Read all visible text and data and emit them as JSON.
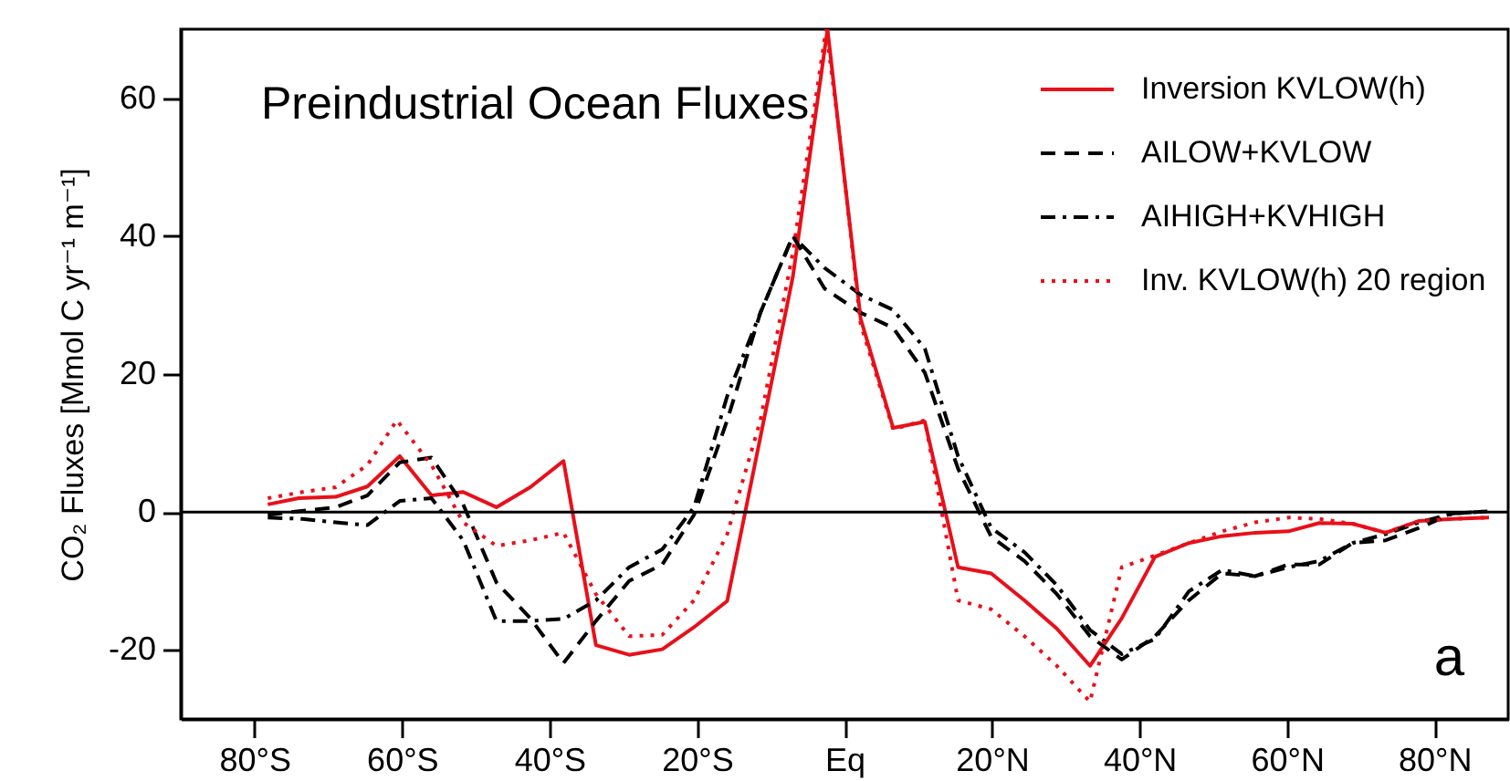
{
  "chart_data": {
    "type": "line",
    "title": "Preindustrial Ocean Fluxes",
    "ylabel": "CO₂ Fluxes [Mmol C yr⁻¹ m⁻¹]",
    "annotations": [
      "a"
    ],
    "xlim": [
      -90,
      90
    ],
    "xticks": [
      {
        "value": -80,
        "label": "80°S"
      },
      {
        "value": -60,
        "label": "60°S"
      },
      {
        "value": -40,
        "label": "40°S"
      },
      {
        "value": -20,
        "label": "20°S"
      },
      {
        "value": 0,
        "label": "Eq"
      },
      {
        "value": 20,
        "label": "20°N"
      },
      {
        "value": 40,
        "label": "40°N"
      },
      {
        "value": 60,
        "label": "60°N"
      },
      {
        "value": 80,
        "label": "80°N"
      }
    ],
    "ylim": [
      -30,
      70
    ],
    "yticks": [
      -20,
      0,
      20,
      40,
      60
    ],
    "legend": "top right",
    "ref_lines": [
      {
        "axis": "y",
        "value": 0,
        "color": "#000000"
      }
    ],
    "series": [
      {
        "name": "Inversion KVLOW(h)",
        "color": "#e8101a",
        "line_style": "solid",
        "x": [
          -78.2,
          -74,
          -69,
          -64.7,
          -60.3,
          -56,
          -51.7,
          -47.2,
          -42.6,
          -38.1,
          -33.7,
          -29.2,
          -24.7,
          -20.4,
          -15.9,
          -7,
          -2.3,
          -0.7,
          2.2,
          6.6,
          10.9,
          15.4,
          19.9,
          24.4,
          28.8,
          33.3,
          37.6,
          42.1,
          46.7,
          51.2,
          55.7,
          60.2,
          64.4,
          68.9,
          73.4,
          77.9,
          82.5,
          87.4
        ],
        "values": [
          1.1,
          2.0,
          2.2,
          3.7,
          8.1,
          2.4,
          2.9,
          0.7,
          3.6,
          7.4,
          -19.3,
          -20.7,
          -19.9,
          -16.7,
          -12.9,
          34.1,
          70,
          54.9,
          28.0,
          12.2,
          13.1,
          -8.0,
          -8.9,
          -12.8,
          -16.9,
          -22.3,
          -15.4,
          -6.5,
          -4.5,
          -3.5,
          -3.0,
          -2.8,
          -1.6,
          -1.7,
          -3.0,
          -1.3,
          -1.0,
          -0.8
        ]
      },
      {
        "name": "AILOW+KVLOW",
        "color": "#000000",
        "line_style": "dashed",
        "x": [
          -78.2,
          -69,
          -64.7,
          -60.3,
          -56,
          -51.7,
          -47.2,
          -42.6,
          -38.1,
          -33.7,
          -29.2,
          -24.7,
          -20.4,
          -15.9,
          -11.4,
          -7,
          -2.7,
          2.2,
          6.6,
          10.9,
          15.4,
          19.9,
          24.4,
          28.8,
          33.3,
          37.6,
          42.1,
          46.7,
          51.2,
          55.7,
          60.2,
          64.4,
          68.9,
          73.4,
          77.9,
          82.5,
          87.4
        ],
        "values": [
          -0.4,
          0.7,
          2.4,
          7.2,
          7.9,
          1.1,
          -10.2,
          -15.4,
          -21.9,
          -15.8,
          -10.0,
          -7.6,
          -0.4,
          13.3,
          28.9,
          40.0,
          32.4,
          28.9,
          26.7,
          20.2,
          6.3,
          -3.6,
          -7.1,
          -11.9,
          -18.0,
          -21.4,
          -18.0,
          -12.8,
          -8.9,
          -9.3,
          -7.6,
          -7.6,
          -4.5,
          -4.1,
          -2.3,
          -0.2,
          0.1
        ]
      },
      {
        "name": "AIHIGH+KVHIGH",
        "color": "#000000",
        "line_style": "dashdot",
        "x": [
          -78.2,
          -73.5,
          -69,
          -64.7,
          -60.3,
          -56,
          -51.7,
          -47.2,
          -42.6,
          -38.1,
          -33.7,
          -29.2,
          -24.7,
          -20.4,
          -15.9,
          -11.4,
          -7,
          -2.7,
          2.2,
          6.6,
          10.9,
          15.4,
          19.9,
          24.4,
          28.8,
          33.3,
          37.6,
          42.1,
          46.7,
          51.2,
          55.7,
          60.2,
          64.4,
          68.9,
          73.4,
          77.9,
          82.5,
          87.4
        ],
        "values": [
          -0.8,
          -1.0,
          -1.5,
          -1.9,
          1.6,
          2.0,
          -4.1,
          -15.8,
          -15.8,
          -15.5,
          -12.8,
          -8.0,
          -5.4,
          0.7,
          16.8,
          28.9,
          40.0,
          35.4,
          31.5,
          29.3,
          23.7,
          8.1,
          -2.3,
          -5.8,
          -10.6,
          -17.1,
          -20.6,
          -18.4,
          -11.5,
          -8.4,
          -9.3,
          -8.0,
          -7.1,
          -4.5,
          -3.2,
          -1.5,
          -0.2,
          0.1
        ]
      },
      {
        "name": "Inv. KVLOW(h) 20 region",
        "color": "#e8101a",
        "line_style": "dotted",
        "x": [
          -78.2,
          -73.5,
          -69,
          -64.7,
          -60.7,
          -56,
          -51.7,
          -47.2,
          -42.6,
          -38.1,
          -33.7,
          -29.2,
          -24.7,
          -20.4,
          -15.9,
          -11.4,
          -7,
          -2.5,
          -0.7,
          2.2,
          6.6,
          10.9,
          15.4,
          19.9,
          24.4,
          28.8,
          33.3,
          37.6,
          42.1,
          46.7,
          51.2,
          55.7,
          60.2,
          64.4,
          68.9,
          73.4,
          77.9,
          82.5,
          87.4
        ],
        "values": [
          2.0,
          2.9,
          3.6,
          6.8,
          13.3,
          6.8,
          -1.5,
          -4.9,
          -4.1,
          -3.0,
          -11.9,
          -18.0,
          -17.8,
          -12.8,
          -3.2,
          13.3,
          37.6,
          70,
          55,
          27.2,
          12.0,
          13.3,
          -12.8,
          -14.1,
          -18.0,
          -22.3,
          -27.5,
          -8.0,
          -6.3,
          -4.5,
          -2.8,
          -1.5,
          -0.8,
          -1.0,
          -1.7,
          -3.0,
          -1.3,
          -1.0,
          -0.8
        ]
      }
    ]
  }
}
